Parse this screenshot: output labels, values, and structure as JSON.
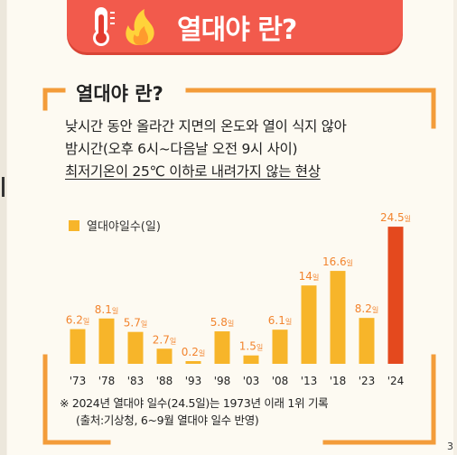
{
  "banner": {
    "title": "열대야 란?"
  },
  "section": {
    "title": "열대야 란?",
    "desc_line1": "낮시간 동안 올라간 지면의 온도와 열이 식지 않아",
    "desc_line2": "밤시간(오후 6시~다음날 오전 9시 사이)",
    "desc_line3": "최저기온이 25℃ 이하로 내려가지 않는 현상"
  },
  "icons": [
    "thermometer-icon",
    "fire-icon"
  ],
  "colors": {
    "banner": "#f25a4c",
    "bar": "#f7b52a",
    "highlight_bar": "#e4491e",
    "label": "#f2842e",
    "frame": "#f39c3a"
  },
  "chart_data": {
    "type": "bar",
    "categories": [
      "'73",
      "'78",
      "'83",
      "'88",
      "'93",
      "'98",
      "'03",
      "'08",
      "'13",
      "'18",
      "'23",
      "'24"
    ],
    "series": [
      {
        "name": "열대야일수(일)",
        "values": [
          6.2,
          8.1,
          5.7,
          2.7,
          0.2,
          5.8,
          1.5,
          6.1,
          14,
          16.6,
          8.2,
          24.5
        ]
      }
    ],
    "data_labels": [
      "6.2",
      "8.1",
      "5.7",
      "2.7",
      "0.2",
      "5.8",
      "1.5",
      "6.1",
      "14",
      "16.6",
      "8.2",
      "24.5"
    ],
    "unit": "일",
    "highlight_index": 11,
    "ylim": [
      0,
      25
    ],
    "grid": false,
    "legend": "top-left"
  },
  "footnote": {
    "line1": "※ 2024년 열대야 일수(24.5일)는 1973년 이래 1위 기록",
    "line2": "(출처:기상청, 6~9월 열대야 일수 반영)"
  },
  "corner_digit": "3"
}
